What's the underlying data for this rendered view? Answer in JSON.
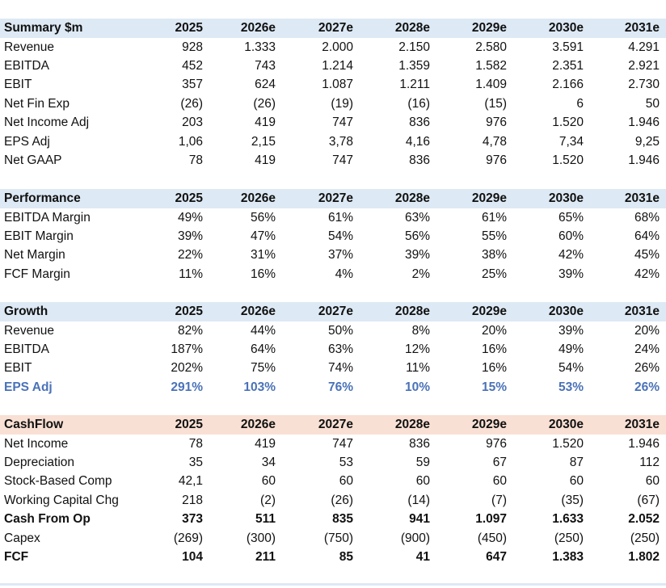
{
  "colors": {
    "header_blue": "#dde9f4",
    "header_peach": "#f9e0d4",
    "highlight_blue": "#4a72b8"
  },
  "years": [
    "2025",
    "2026e",
    "2027e",
    "2028e",
    "2029e",
    "2030e",
    "2031e"
  ],
  "sections": [
    {
      "title": "Summary $m",
      "bg": "#dde9f4",
      "rows": [
        {
          "label": "Revenue",
          "values": [
            "928",
            "1.333",
            "2.000",
            "2.150",
            "2.580",
            "3.591",
            "4.291"
          ]
        },
        {
          "label": "EBITDA",
          "values": [
            "452",
            "743",
            "1.214",
            "1.359",
            "1.582",
            "2.351",
            "2.921"
          ]
        },
        {
          "label": "EBIT",
          "values": [
            "357",
            "624",
            "1.087",
            "1.211",
            "1.409",
            "2.166",
            "2.730"
          ]
        },
        {
          "label": "Net Fin Exp",
          "values": [
            "(26)",
            "(26)",
            "(19)",
            "(16)",
            "(15)",
            "6",
            "50"
          ]
        },
        {
          "label": "Net Income Adj",
          "values": [
            "203",
            "419",
            "747",
            "836",
            "976",
            "1.520",
            "1.946"
          ]
        },
        {
          "label": "EPS Adj",
          "values": [
            "1,06",
            "2,15",
            "3,78",
            "4,16",
            "4,78",
            "7,34",
            "9,25"
          ]
        },
        {
          "label": "Net GAAP",
          "values": [
            "78",
            "419",
            "747",
            "836",
            "976",
            "1.520",
            "1.946"
          ]
        }
      ]
    },
    {
      "title": "Performance",
      "bg": "#dde9f4",
      "rows": [
        {
          "label": "EBITDA Margin",
          "values": [
            "49%",
            "56%",
            "61%",
            "63%",
            "61%",
            "65%",
            "68%"
          ]
        },
        {
          "label": "EBIT Margin",
          "values": [
            "39%",
            "47%",
            "54%",
            "56%",
            "55%",
            "60%",
            "64%"
          ]
        },
        {
          "label": "Net Margin",
          "values": [
            "22%",
            "31%",
            "37%",
            "39%",
            "38%",
            "42%",
            "45%"
          ]
        },
        {
          "label": "FCF Margin",
          "values": [
            "11%",
            "16%",
            "4%",
            "2%",
            "25%",
            "39%",
            "42%"
          ]
        }
      ]
    },
    {
      "title": "Growth",
      "bg": "#dde9f4",
      "rows": [
        {
          "label": "Revenue",
          "values": [
            "82%",
            "44%",
            "50%",
            "8%",
            "20%",
            "39%",
            "20%"
          ]
        },
        {
          "label": "EBITDA",
          "values": [
            "187%",
            "64%",
            "63%",
            "12%",
            "16%",
            "49%",
            "24%"
          ]
        },
        {
          "label": "EBIT",
          "values": [
            "202%",
            "75%",
            "74%",
            "11%",
            "16%",
            "54%",
            "26%"
          ]
        },
        {
          "label": "EPS Adj",
          "style": "blue",
          "values": [
            "291%",
            "103%",
            "76%",
            "10%",
            "15%",
            "53%",
            "26%"
          ]
        }
      ]
    },
    {
      "title": "CashFlow",
      "bg": "#f9e0d4",
      "rows": [
        {
          "label": "Net Income",
          "values": [
            "78",
            "419",
            "747",
            "836",
            "976",
            "1.520",
            "1.946"
          ]
        },
        {
          "label": "Depreciation",
          "values": [
            "35",
            "34",
            "53",
            "59",
            "67",
            "87",
            "112"
          ]
        },
        {
          "label": "Stock-Based Comp",
          "values": [
            "42,1",
            "60",
            "60",
            "60",
            "60",
            "60",
            "60"
          ]
        },
        {
          "label": "Working Capital Chg",
          "values": [
            "218",
            "(2)",
            "(26)",
            "(14)",
            "(7)",
            "(35)",
            "(67)"
          ]
        },
        {
          "label": "Cash From Op",
          "style": "bold",
          "values": [
            "373",
            "511",
            "835",
            "941",
            "1.097",
            "1.633",
            "2.052"
          ]
        },
        {
          "label": "Capex",
          "values": [
            "(269)",
            "(300)",
            "(750)",
            "(900)",
            "(450)",
            "(250)",
            "(250)"
          ]
        },
        {
          "label": "FCF",
          "style": "bold",
          "values": [
            "104",
            "211",
            "85",
            "41",
            "647",
            "1.383",
            "1.802"
          ]
        }
      ]
    }
  ]
}
